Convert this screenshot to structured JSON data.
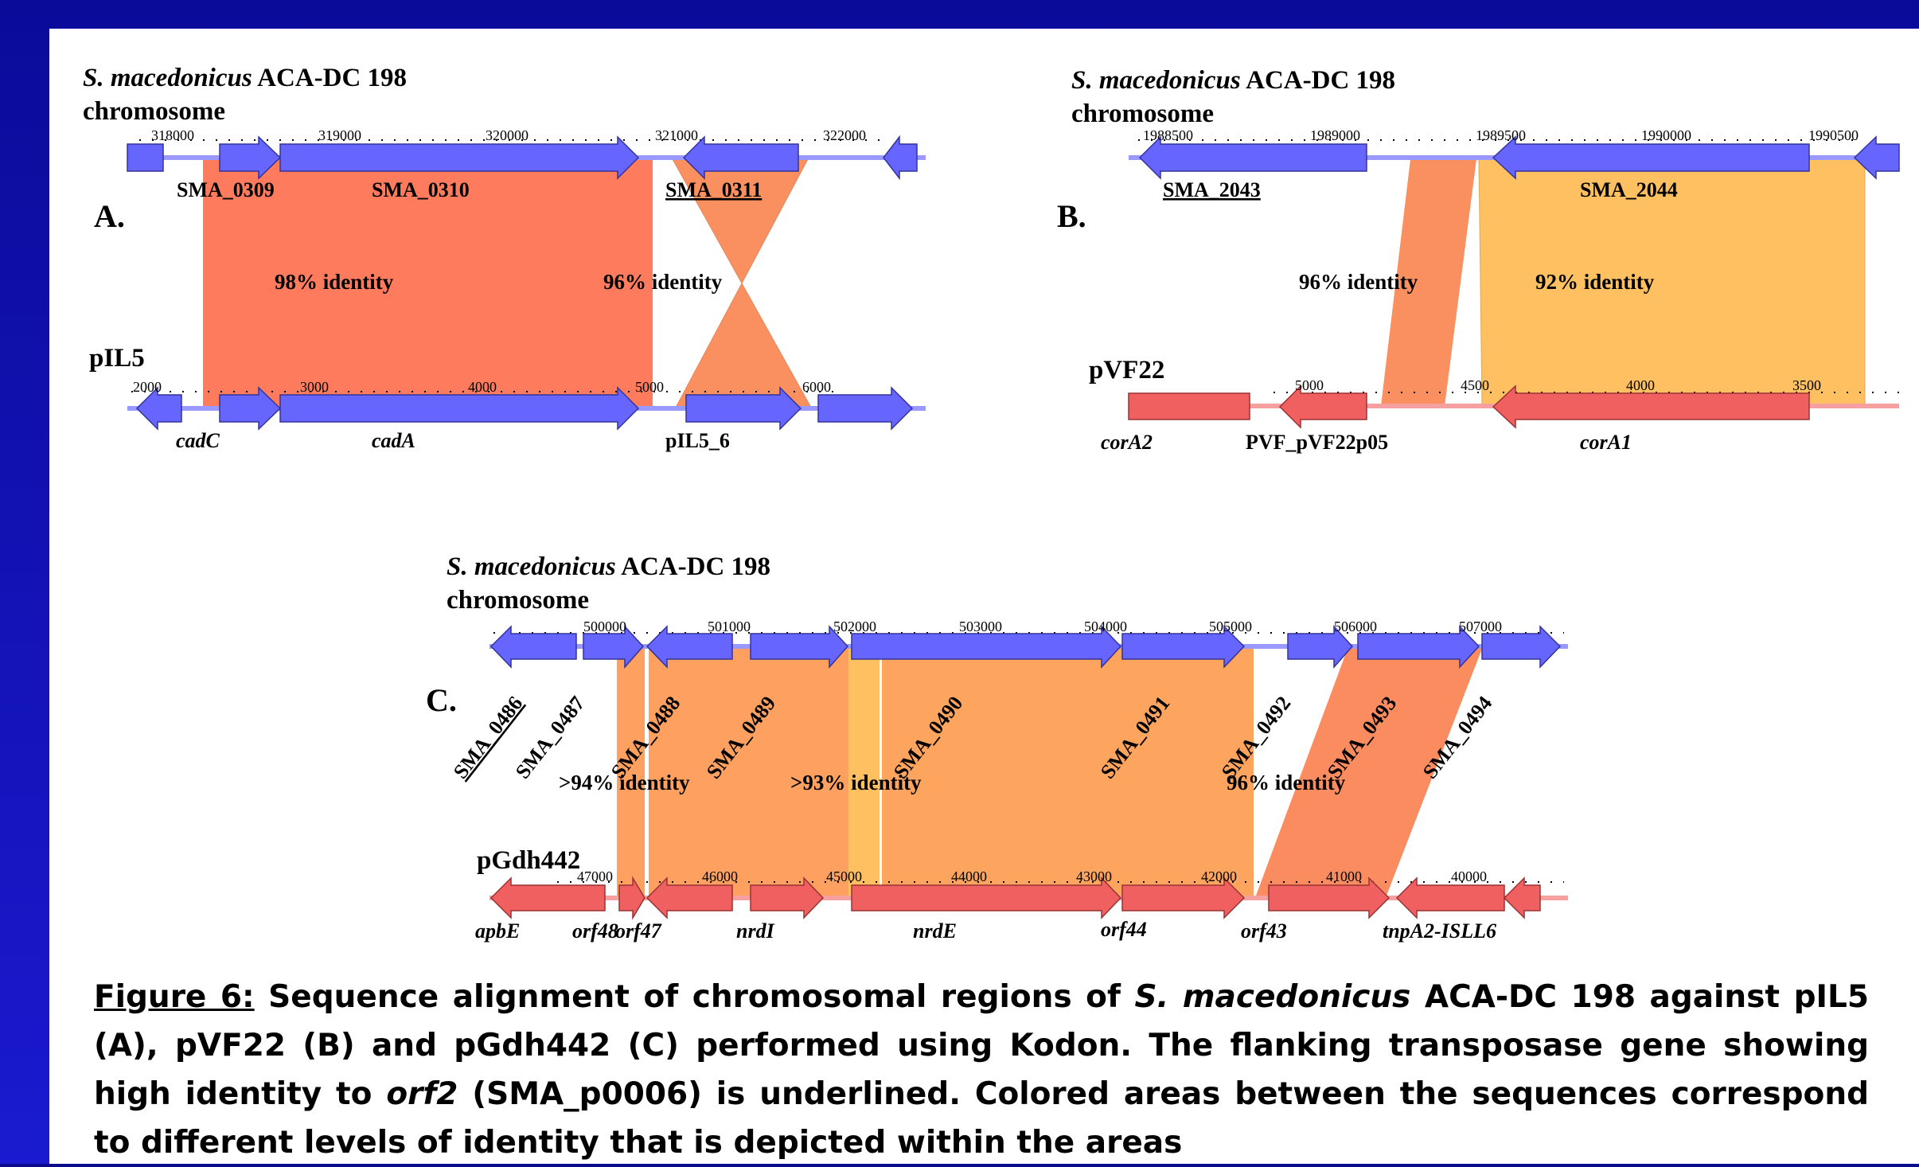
{
  "colors": {
    "background": "#0a0a8c",
    "chromosome_gene": "#6666ff",
    "chromosome_backbone": "#9999ff",
    "plasmid_gene_red": "#f06060",
    "plasmid_backbone_red": "#f6a0a0",
    "identity_98": "#ff7b5e",
    "identity_96": "#fa9060",
    "identity_94": "#fda060",
    "identity_93": "#fda45e",
    "identity_92": "#fec060"
  },
  "panels": {
    "A": {
      "letter": "A.",
      "chromosome_title_italic": "S. macedonicus",
      "chromosome_title_rest": "ACA-DC 198",
      "chromosome_title_line2": "chromosome",
      "plasmid_name": "pIL5",
      "chromosome_ticks": [
        "318000",
        "319000",
        "320000",
        "321000",
        "322000"
      ],
      "plasmid_ticks": [
        "2000",
        "3000",
        "4000",
        "5000",
        "6000"
      ],
      "chromosome_genes": [
        "SMA_0309",
        "SMA_0310",
        "SMA_0311"
      ],
      "plasmid_genes": [
        "cadC",
        "cadA",
        "pIL5_6"
      ],
      "identities": [
        "98% identity",
        "96% identity"
      ]
    },
    "B": {
      "letter": "B.",
      "chromosome_title_italic": "S. macedonicus",
      "chromosome_title_rest": "ACA-DC 198",
      "chromosome_title_line2": "chromosome",
      "plasmid_name": "pVF22",
      "chromosome_ticks": [
        "1988500",
        "1989000",
        "1989500",
        "1990000",
        "1990500"
      ],
      "plasmid_ticks": [
        "5000",
        "4500",
        "4000",
        "3500"
      ],
      "chromosome_genes": [
        "SMA_2043",
        "SMA_2044"
      ],
      "plasmid_genes": [
        "corA2",
        "PVF_pVF22p05",
        "corA1"
      ],
      "identities": [
        "96% identity",
        "92% identity"
      ]
    },
    "C": {
      "letter": "C.",
      "chromosome_title_italic": "S. macedonicus",
      "chromosome_title_rest": "ACA-DC 198",
      "chromosome_title_line2": "chromosome",
      "plasmid_name": "pGdh442",
      "chromosome_ticks": [
        "500000",
        "501000",
        "502000",
        "503000",
        "504000",
        "505000",
        "506000",
        "507000"
      ],
      "plasmid_ticks": [
        "47000",
        "46000",
        "45000",
        "44000",
        "43000",
        "42000",
        "41000",
        "40000"
      ],
      "chromosome_genes": [
        "SMA_0486",
        "SMA_0487",
        "SMA_0488",
        "SMA_0489",
        "SMA_0490",
        "SMA_0491",
        "SMA_0492",
        "SMA_0493",
        "SMA_0494"
      ],
      "plasmid_genes": [
        "apbE",
        "orf48",
        "orf47",
        "nrdI",
        "nrdE",
        "orf44",
        "orf43",
        "tnpA2-ISLL6"
      ],
      "identities": [
        ">94% identity",
        ">93% identity",
        "96% identity"
      ]
    }
  },
  "caption": {
    "label": "Figure 6:",
    "part1": " Sequence alignment of chromosomal regions of ",
    "italic1": "S. macedonicus",
    "part2": " ACA-DC 198 against pIL5 (A), pVF22 (B) and pGdh442 (C) performed using Kodon. The flanking transposase gene showing high identity to ",
    "italic2": "orf2",
    "part3": " (SMA_p0006) is underlined. Colored areas between the sequences correspond to different levels of identity that is depicted within the areas"
  }
}
